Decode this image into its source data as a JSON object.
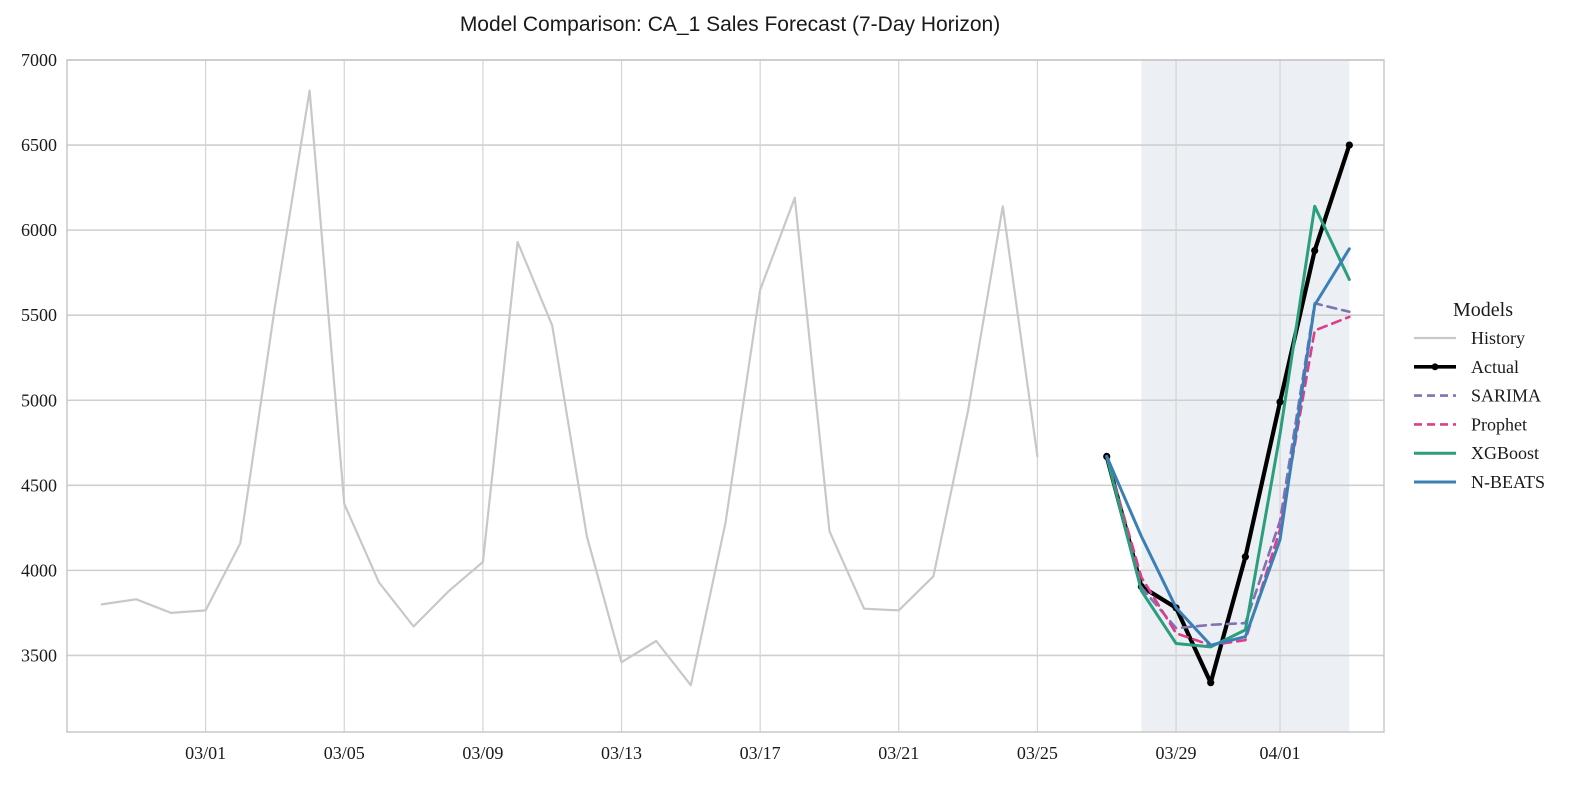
{
  "chart_data": {
    "type": "line",
    "title": "Model Comparison: CA_1 Sales Forecast (7-Day Horizon)",
    "xlabel": "",
    "ylabel": "",
    "ylim": [
      3050,
      7000
    ],
    "xlim": [
      "2016-02-26",
      "2016-04-04"
    ],
    "yticks": [
      3500,
      4000,
      4500,
      5000,
      5500,
      6000,
      6500,
      7000
    ],
    "xticks": [
      {
        "date": "2016-03-01",
        "label": "03/01"
      },
      {
        "date": "2016-03-05",
        "label": "03/05"
      },
      {
        "date": "2016-03-09",
        "label": "03/09"
      },
      {
        "date": "2016-03-13",
        "label": "03/13"
      },
      {
        "date": "2016-03-17",
        "label": "03/17"
      },
      {
        "date": "2016-03-21",
        "label": "03/21"
      },
      {
        "date": "2016-03-25",
        "label": "03/25"
      },
      {
        "date": "2016-03-29",
        "label": "03/29"
      },
      {
        "date": "2016-04-01",
        "label": "04/01"
      }
    ],
    "grid": true,
    "forecast_window": {
      "start": "2016-03-28",
      "end": "2016-04-03",
      "color": "#eceff3"
    },
    "legend": {
      "title": "Models",
      "position": "right"
    },
    "series": [
      {
        "name": "History",
        "color": "#c8c8c8",
        "style": "solid",
        "x": [
          "2016-02-27",
          "2016-02-28",
          "2016-02-29",
          "2016-03-01",
          "2016-03-02",
          "2016-03-03",
          "2016-03-04",
          "2016-03-05",
          "2016-03-06",
          "2016-03-07",
          "2016-03-08",
          "2016-03-09",
          "2016-03-10",
          "2016-03-11",
          "2016-03-12",
          "2016-03-13",
          "2016-03-14",
          "2016-03-15",
          "2016-03-16",
          "2016-03-17",
          "2016-03-18",
          "2016-03-19",
          "2016-03-20",
          "2016-03-21",
          "2016-03-22",
          "2016-03-23",
          "2016-03-24",
          "2016-03-25",
          "2016-03-26",
          "2016-03-27"
        ],
        "values": [
          3800,
          3830,
          3750,
          3765,
          4160,
          5550,
          6820,
          4390,
          3930,
          3670,
          3875,
          4050,
          5930,
          5440,
          4200,
          3460,
          3585,
          3325,
          4280,
          5650,
          6190,
          4230,
          3775,
          3765,
          3965,
          4940,
          6140,
          4670,
          null,
          null
        ]
      },
      {
        "name": "Actual",
        "color": "#000000",
        "style": "solid-marker",
        "x": [
          "2016-03-27",
          "2016-03-28",
          "2016-03-29",
          "2016-03-30",
          "2016-03-31",
          "2016-04-01",
          "2016-04-02",
          "2016-04-03"
        ],
        "values": [
          4670,
          3905,
          3780,
          3340,
          4080,
          4990,
          5880,
          6500
        ]
      },
      {
        "name": "SARIMA",
        "color": "#7f72b5",
        "style": "dashed",
        "x": [
          "2016-03-27",
          "2016-03-28",
          "2016-03-29",
          "2016-03-30",
          "2016-03-31",
          "2016-04-01",
          "2016-04-02",
          "2016-04-03"
        ],
        "values": [
          4670,
          3900,
          3660,
          3680,
          3690,
          4290,
          5570,
          5520
        ]
      },
      {
        "name": "Prophet",
        "color": "#dd3e8b",
        "style": "dashed",
        "x": [
          "2016-03-27",
          "2016-03-28",
          "2016-03-29",
          "2016-03-30",
          "2016-03-31",
          "2016-04-01",
          "2016-04-02",
          "2016-04-03"
        ],
        "values": [
          4670,
          3960,
          3630,
          3560,
          3590,
          4240,
          5410,
          5490
        ]
      },
      {
        "name": "XGBoost",
        "color": "#2a9e7d",
        "style": "solid",
        "x": [
          "2016-03-27",
          "2016-03-28",
          "2016-03-29",
          "2016-03-30",
          "2016-03-31",
          "2016-04-01",
          "2016-04-02",
          "2016-04-03"
        ],
        "values": [
          4670,
          3880,
          3570,
          3550,
          3650,
          4800,
          6140,
          5710
        ]
      },
      {
        "name": "N-BEATS",
        "color": "#3a80b6",
        "style": "solid",
        "x": [
          "2016-03-27",
          "2016-03-28",
          "2016-03-29",
          "2016-03-30",
          "2016-03-31",
          "2016-04-01",
          "2016-04-02",
          "2016-04-03"
        ],
        "values": [
          4670,
          4200,
          3780,
          3560,
          3610,
          4180,
          5560,
          5890
        ]
      }
    ]
  }
}
